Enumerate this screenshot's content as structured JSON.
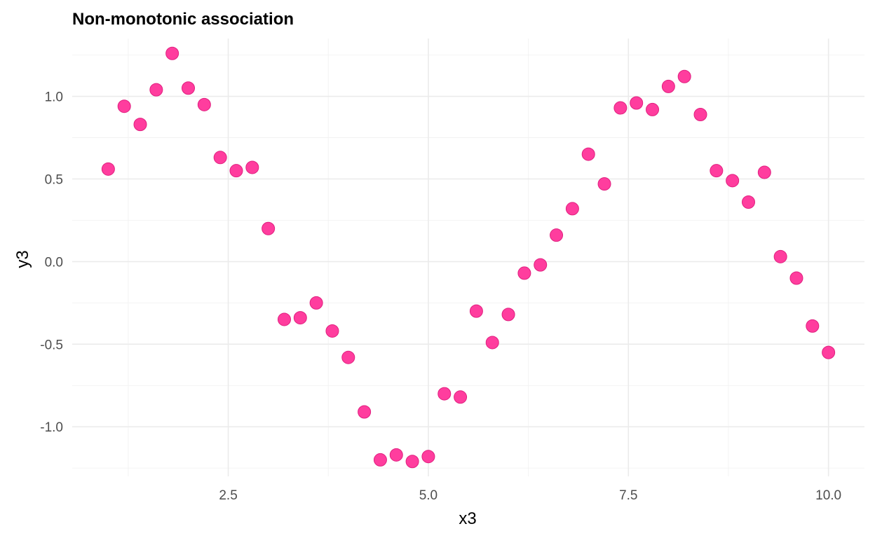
{
  "chart_data": {
    "type": "scatter",
    "title": "Non-monotonic association",
    "xlabel": "x3",
    "ylabel": "y3",
    "xlim": [
      0.55,
      10.45
    ],
    "ylim": [
      -1.3,
      1.35
    ],
    "x_ticks": [
      2.5,
      5.0,
      7.5,
      10.0
    ],
    "x_tick_labels": [
      "2.5",
      "5.0",
      "7.5",
      "10.0"
    ],
    "y_ticks": [
      -1.0,
      -0.5,
      0.0,
      0.5,
      1.0
    ],
    "y_tick_labels": [
      "-1.0",
      "-0.5",
      "0.0",
      "0.5",
      "1.0"
    ],
    "x_minor_ticks": [
      1.25,
      3.75,
      6.25,
      8.75
    ],
    "y_minor_ticks": [
      -1.25,
      -0.75,
      -0.25,
      0.25,
      0.75,
      1.25
    ],
    "grid": true,
    "point_color": "#FF3399",
    "point_stroke": "#E0207F",
    "points": [
      {
        "x": 1.0,
        "y": 0.56
      },
      {
        "x": 1.2,
        "y": 0.94
      },
      {
        "x": 1.4,
        "y": 0.83
      },
      {
        "x": 1.6,
        "y": 1.04
      },
      {
        "x": 1.8,
        "y": 1.26
      },
      {
        "x": 2.0,
        "y": 1.05
      },
      {
        "x": 2.2,
        "y": 0.95
      },
      {
        "x": 2.4,
        "y": 0.63
      },
      {
        "x": 2.6,
        "y": 0.55
      },
      {
        "x": 2.8,
        "y": 0.57
      },
      {
        "x": 3.0,
        "y": 0.2
      },
      {
        "x": 3.2,
        "y": -0.35
      },
      {
        "x": 3.4,
        "y": -0.34
      },
      {
        "x": 3.6,
        "y": -0.25
      },
      {
        "x": 3.8,
        "y": -0.42
      },
      {
        "x": 4.0,
        "y": -0.58
      },
      {
        "x": 4.2,
        "y": -0.91
      },
      {
        "x": 4.4,
        "y": -1.2
      },
      {
        "x": 4.6,
        "y": -1.17
      },
      {
        "x": 4.8,
        "y": -1.21
      },
      {
        "x": 5.0,
        "y": -1.18
      },
      {
        "x": 5.2,
        "y": -0.8
      },
      {
        "x": 5.4,
        "y": -0.82
      },
      {
        "x": 5.6,
        "y": -0.3
      },
      {
        "x": 5.8,
        "y": -0.49
      },
      {
        "x": 6.0,
        "y": -0.32
      },
      {
        "x": 6.2,
        "y": -0.07
      },
      {
        "x": 6.4,
        "y": -0.02
      },
      {
        "x": 6.6,
        "y": 0.16
      },
      {
        "x": 6.8,
        "y": 0.32
      },
      {
        "x": 7.0,
        "y": 0.65
      },
      {
        "x": 7.2,
        "y": 0.47
      },
      {
        "x": 7.4,
        "y": 0.93
      },
      {
        "x": 7.6,
        "y": 0.96
      },
      {
        "x": 7.8,
        "y": 0.92
      },
      {
        "x": 8.0,
        "y": 1.06
      },
      {
        "x": 8.2,
        "y": 1.12
      },
      {
        "x": 8.4,
        "y": 0.89
      },
      {
        "x": 8.6,
        "y": 0.55
      },
      {
        "x": 8.8,
        "y": 0.49
      },
      {
        "x": 9.0,
        "y": 0.36
      },
      {
        "x": 9.2,
        "y": 0.54
      },
      {
        "x": 9.4,
        "y": 0.03
      },
      {
        "x": 9.6,
        "y": -0.1
      },
      {
        "x": 9.8,
        "y": -0.39
      },
      {
        "x": 10.0,
        "y": -0.55
      }
    ]
  }
}
